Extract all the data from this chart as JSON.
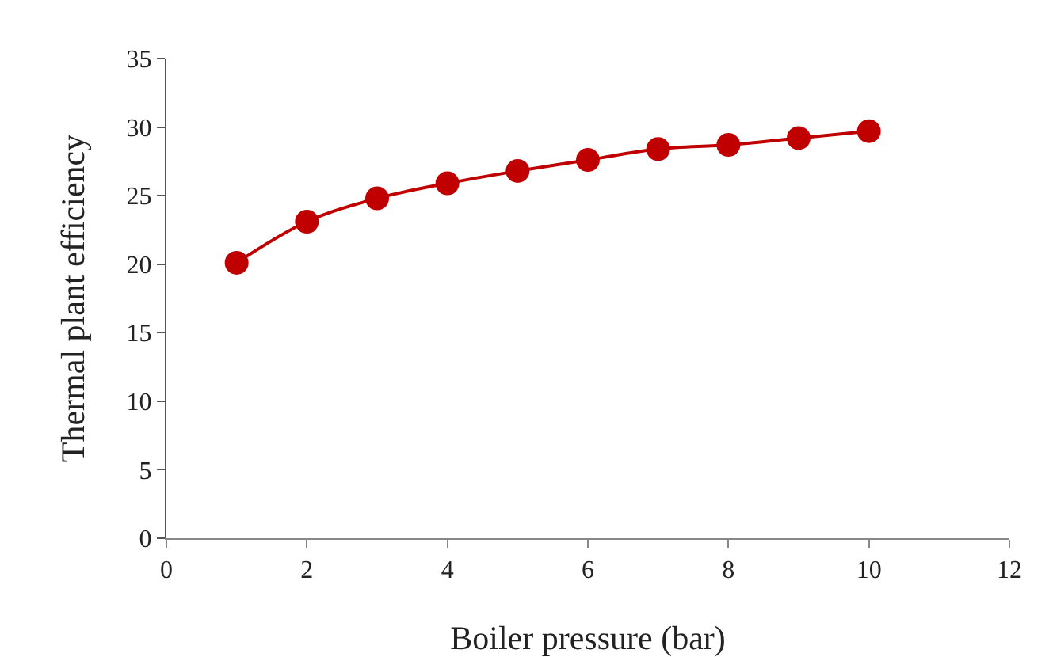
{
  "chart_data": {
    "type": "line",
    "xlabel": "Boiler pressure (bar)",
    "ylabel": "Thermal plant efficiency",
    "x": [
      1,
      2,
      3,
      4,
      5,
      6,
      7,
      8,
      9,
      10
    ],
    "series": [
      {
        "color": "#c00000",
        "values": [
          20.1,
          23.1,
          24.8,
          25.9,
          26.8,
          27.6,
          28.4,
          28.7,
          29.2,
          29.7
        ]
      }
    ],
    "xlim": [
      0,
      12
    ],
    "xticks": [
      0,
      2,
      4,
      6,
      8,
      10,
      12
    ],
    "ylim": [
      0,
      35
    ],
    "yticks": [
      0,
      5,
      10,
      15,
      20,
      25,
      30,
      35
    ],
    "grid": false,
    "marker": "circle",
    "line_style": "solid"
  }
}
